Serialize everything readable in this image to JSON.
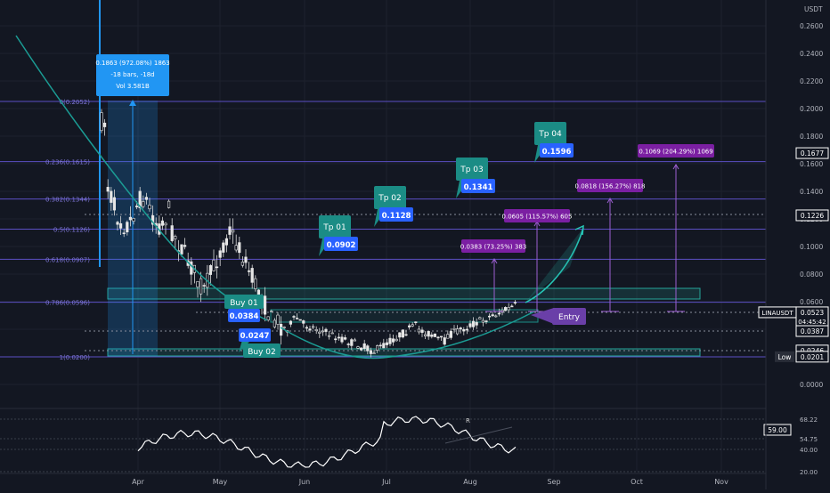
{
  "symbol": "LINAUSDT",
  "currency": "USDT",
  "price_axis": {
    "ticks": [
      0.26,
      0.24,
      0.22,
      0.2,
      0.18,
      0.16,
      0.14,
      0.12,
      0.1,
      0.08,
      0.06,
      0.04,
      0.02,
      0.0
    ],
    "tick_labels": [
      "0.2600",
      "0.2400",
      "0.2200",
      "0.2000",
      "0.1800",
      "0.1600",
      "0.1400",
      "0.1200",
      "0.1000",
      "0.0800",
      "0.0600",
      "0.0400",
      "0.0200",
      "0.0000"
    ],
    "badges": [
      {
        "label": "0.1677",
        "value": 0.1677,
        "style": "outline"
      },
      {
        "label": "0.1226",
        "value": 0.1226,
        "style": "outline"
      },
      {
        "label": "0.0523",
        "value": 0.0523,
        "style": "outline",
        "symbol": "LINAUSDT",
        "countdown": "04:45:42"
      },
      {
        "label": "0.0387",
        "value": 0.0387,
        "style": "outline"
      },
      {
        "label": "0.0246",
        "value": 0.0246,
        "style": "outline"
      },
      {
        "label": "0.0201",
        "value": 0.0201,
        "style": "low",
        "tag": "Low"
      }
    ]
  },
  "time_axis": [
    "Apr",
    "May",
    "Jun",
    "Jul",
    "Aug",
    "Sep",
    "Oct",
    "Nov"
  ],
  "fib_levels": [
    {
      "label": "0(0.2052)",
      "value": 0.2052
    },
    {
      "label": "0.236(0.1615)",
      "value": 0.1615
    },
    {
      "label": "0.382(0.1344)",
      "value": 0.1344
    },
    {
      "label": "0.5(0.1126)",
      "value": 0.1126
    },
    {
      "label": "0.618(0.0907)",
      "value": 0.0907
    },
    {
      "label": "0.786(0.0596)",
      "value": 0.0596
    },
    {
      "label": "1(0.0200)",
      "value": 0.02
    }
  ],
  "measure_tooltip": {
    "line1": "0.1863 (972.08%) 1863",
    "line2": "-18 bars, -18d",
    "line3": "Vol 3.581B"
  },
  "targets": [
    {
      "name": "Tp 01",
      "price": "0.0902"
    },
    {
      "name": "Tp 02",
      "price": "0.1128"
    },
    {
      "name": "Tp 03",
      "price": "0.1341"
    },
    {
      "name": "Tp 04",
      "price": "0.1596"
    }
  ],
  "buys": [
    {
      "name": "Buy 01",
      "price": "0.0384"
    },
    {
      "name": "Buy 02",
      "price": "0.0247"
    }
  ],
  "entry_label": "Entry",
  "gain_labels": [
    "0.0383 (73.25%) 383",
    "0.0605 (115.57%) 605",
    "0.0818 (156.27%) 818",
    "0.1069 (204.29%) 1069"
  ],
  "rsi": {
    "value": "59.00",
    "ticks": [
      "68.22",
      "54.75",
      "40.00",
      "20.00"
    ],
    "divergence_label": "R"
  },
  "colors": {
    "background": "#131722",
    "up": "#e6e6e6",
    "down": "#131722",
    "fib": "#5b4fc4",
    "teal": "#1b8c85",
    "blue_badge": "#2962ff",
    "purple_badge": "#7b1fa2",
    "measure_blue": "#2196f3"
  }
}
